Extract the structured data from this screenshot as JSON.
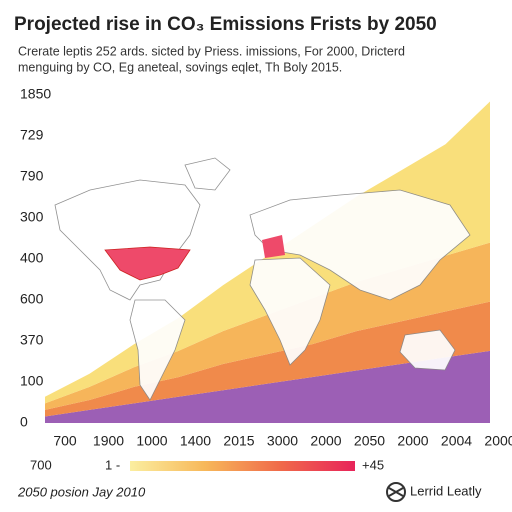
{
  "chart_data": {
    "type": "area",
    "title": "Projected rise in CO₃ Emissions Frists by 2050",
    "subtitle": [
      "Crerate leptis 252 ards. sicted by Priess. imissions, For 2000, Dricterd",
      "menguing by CO, Eg aneteal, sovings eqlet, Th Boly 2015."
    ],
    "categories": [
      "700",
      "1900",
      "1000",
      "1400",
      "2015",
      "3000",
      "2000",
      "2050",
      "2000",
      "2004",
      "2000"
    ],
    "y_labels": [
      "1850",
      "729",
      "790",
      "300",
      "400",
      "600",
      "370",
      "100",
      "0"
    ],
    "ylim": [
      0,
      100
    ],
    "stacked": true,
    "series": [
      {
        "color": "#9c5fb5",
        "values": [
          2,
          4,
          6,
          8,
          10,
          12,
          14,
          16,
          18,
          20,
          22
        ]
      },
      {
        "color": "#f08a4b",
        "values": [
          2,
          3,
          5,
          6,
          8,
          9,
          10,
          12,
          13,
          14,
          15
        ]
      },
      {
        "color": "#f6b55a",
        "values": [
          2,
          4,
          6,
          8,
          10,
          12,
          14,
          15,
          16,
          17,
          18
        ]
      },
      {
        "color": "#f9df7b",
        "values": [
          2,
          4,
          7,
          10,
          14,
          18,
          22,
          26,
          30,
          34,
          43
        ]
      }
    ],
    "colorbar": {
      "left_label": "700",
      "mid_label": "1 -",
      "right_label": "+45",
      "colors": [
        "#fbeea0",
        "#f7b85a",
        "#f06a4a",
        "#e8245a"
      ]
    },
    "footer": "2050 posion Jay 2010",
    "logo": "Lerrid Leatly"
  }
}
